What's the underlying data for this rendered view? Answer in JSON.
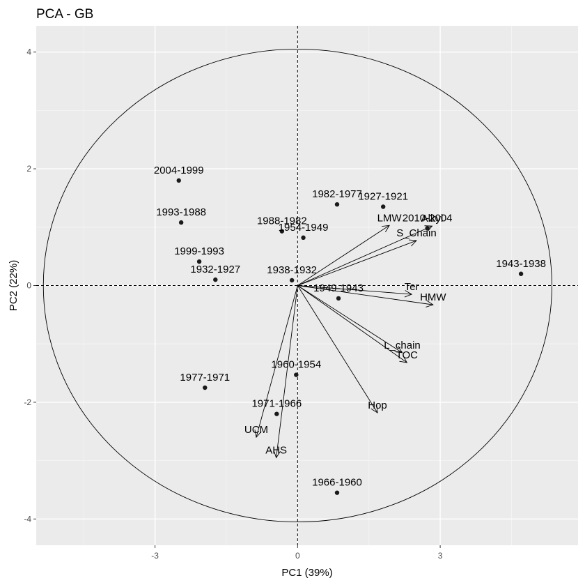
{
  "chart_data": {
    "type": "scatter",
    "title": "PCA - GB",
    "xlabel": "PC1 (39%)",
    "ylabel": "PC2 (22%)",
    "xlim": [
      -5.5,
      5.9
    ],
    "ylim": [
      -4.45,
      4.45
    ],
    "xticks": [
      -3,
      0,
      3
    ],
    "yticks": [
      -4,
      -2,
      0,
      2,
      4
    ],
    "grid": true,
    "reference_lines": {
      "x": 0,
      "y": 0,
      "style": "dashed"
    },
    "correlation_circle": {
      "center": [
        0,
        0
      ],
      "radius_x": 5.35,
      "radius_y": 4.05
    },
    "points": [
      {
        "label": "2004-1999",
        "x": -2.5,
        "y": 1.8
      },
      {
        "label": "1993-1988",
        "x": -2.45,
        "y": 1.08
      },
      {
        "label": "1999-1993",
        "x": -2.07,
        "y": 0.41
      },
      {
        "label": "1932-1927",
        "x": -1.73,
        "y": 0.1
      },
      {
        "label": "1988-1982",
        "x": -0.33,
        "y": 0.93
      },
      {
        "label": "1954-1949",
        "x": 0.12,
        "y": 0.82
      },
      {
        "label": "1938-1932",
        "x": -0.12,
        "y": 0.09
      },
      {
        "label": "1982-1977",
        "x": 0.83,
        "y": 1.39
      },
      {
        "label": "1927-1921",
        "x": 1.8,
        "y": 1.35
      },
      {
        "label": "2010-2004",
        "x": 2.73,
        "y": 0.98
      },
      {
        "label": "1949-1943",
        "x": 0.86,
        "y": -0.22
      },
      {
        "label": "1943-1938",
        "x": 4.7,
        "y": 0.2
      },
      {
        "label": "1960-1954",
        "x": -0.03,
        "y": -1.53
      },
      {
        "label": "1977-1971",
        "x": -1.95,
        "y": -1.75
      },
      {
        "label": "1971-1966",
        "x": -0.44,
        "y": -2.2
      },
      {
        "label": "1966-1960",
        "x": 0.83,
        "y": -3.55
      }
    ],
    "variables": [
      {
        "label": "LMW",
        "x": 1.93,
        "y": 1.03
      },
      {
        "label": "Alkyl",
        "x": 2.83,
        "y": 1.02
      },
      {
        "label": "S_Chain",
        "x": 2.5,
        "y": 0.77
      },
      {
        "label": "Ter",
        "x": 2.4,
        "y": -0.15
      },
      {
        "label": "HMW",
        "x": 2.85,
        "y": -0.33
      },
      {
        "label": "L_chain",
        "x": 2.2,
        "y": -1.15
      },
      {
        "label": "TOC",
        "x": 2.3,
        "y": -1.32
      },
      {
        "label": "Hop",
        "x": 1.68,
        "y": -2.18
      },
      {
        "label": "UCM",
        "x": -0.87,
        "y": -2.6
      },
      {
        "label": "AHS",
        "x": -0.45,
        "y": -2.95
      }
    ]
  }
}
